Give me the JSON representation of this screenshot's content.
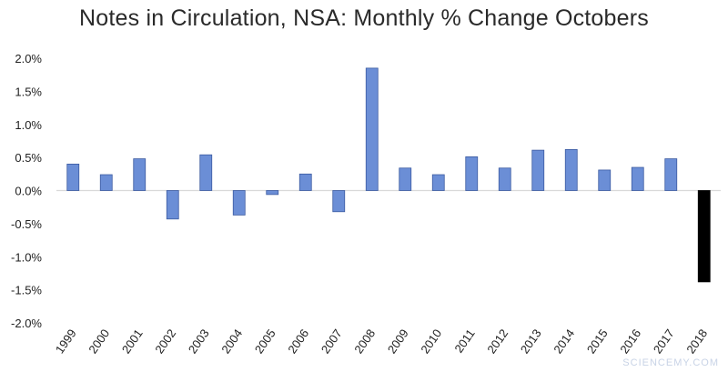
{
  "chart_data": {
    "type": "bar",
    "title": "Notes in Circulation, NSA: Monthly % Change Octobers",
    "xlabel": "",
    "ylabel": "",
    "ylim": [
      -2.0,
      2.0
    ],
    "yticks": [
      2.0,
      1.5,
      1.0,
      0.5,
      0.0,
      -0.5,
      -1.0,
      -1.5,
      -2.0
    ],
    "ytick_labels": [
      "2.0%",
      "1.5%",
      "1.0%",
      "0.5%",
      "0.0%",
      "-0.5%",
      "-1.0%",
      "-1.5%",
      "-2.0%"
    ],
    "categories": [
      "1999",
      "2000",
      "2001",
      "2002",
      "2003",
      "2004",
      "2005",
      "2006",
      "2007",
      "2008",
      "2009",
      "2010",
      "2011",
      "2012",
      "2013",
      "2014",
      "2015",
      "2016",
      "2017",
      "2018"
    ],
    "values": [
      0.4,
      0.24,
      0.48,
      -0.43,
      0.54,
      -0.37,
      -0.06,
      0.25,
      -0.32,
      1.85,
      0.34,
      0.24,
      0.51,
      0.34,
      0.61,
      0.62,
      0.31,
      0.35,
      0.48,
      -1.38
    ],
    "colors": {
      "default": "#6b8ed6",
      "highlight": "#000000",
      "bar_border": "#3b5aa0",
      "gridline": "#d9d9d9"
    },
    "highlight_index": 19,
    "grid": true,
    "legend": "none"
  },
  "watermark": "SCIENCEMY.COM"
}
